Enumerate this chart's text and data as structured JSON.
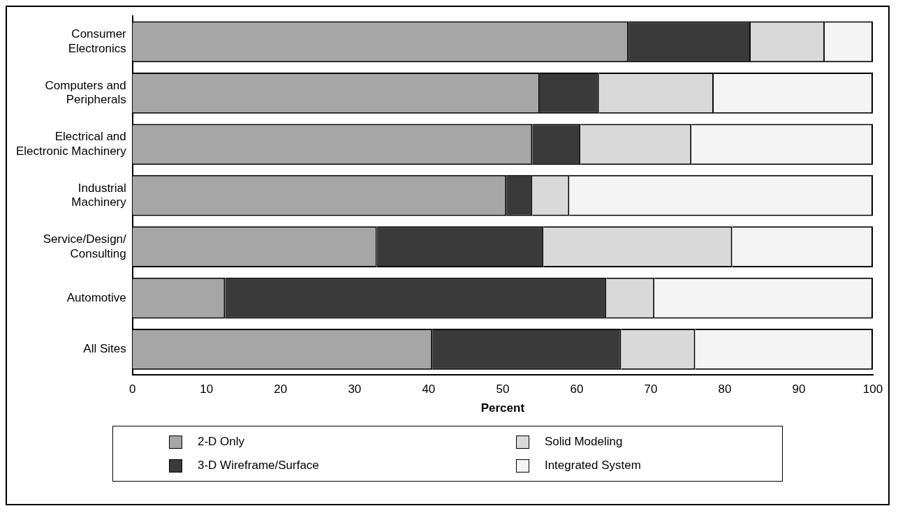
{
  "chart_data": {
    "type": "bar",
    "orientation": "horizontal",
    "stacked": true,
    "xlabel": "Percent",
    "categories": [
      "Consumer Electronics",
      "Computers and Peripherals",
      "Electrical and Electronic Machinery",
      "Industrial Machinery",
      "Service/Design/Consulting",
      "Automotive",
      "All Sites"
    ],
    "series": [
      {
        "name": "2-D Only",
        "color": "#a6a6a6",
        "values": [
          67,
          55,
          54,
          50.5,
          33,
          12.5,
          40.5
        ]
      },
      {
        "name": "3-D Wireframe/Surface",
        "color": "#3a3a3a",
        "values": [
          16.5,
          8,
          6.5,
          3.5,
          22.5,
          51.5,
          25.5
        ]
      },
      {
        "name": "Solid Modeling",
        "color": "#d9d9d9",
        "values": [
          10,
          15.5,
          15,
          5,
          25.5,
          6.5,
          10
        ]
      },
      {
        "name": "Integrated System",
        "color": "#f4f4f4",
        "values": [
          6.5,
          21.5,
          24.5,
          41,
          19,
          29.5,
          24
        ]
      }
    ],
    "xlim": [
      0,
      100
    ],
    "xticks": [
      0,
      10,
      20,
      30,
      40,
      50,
      60,
      70,
      80,
      90,
      100
    ],
    "grid": false,
    "legend": "bottom"
  }
}
